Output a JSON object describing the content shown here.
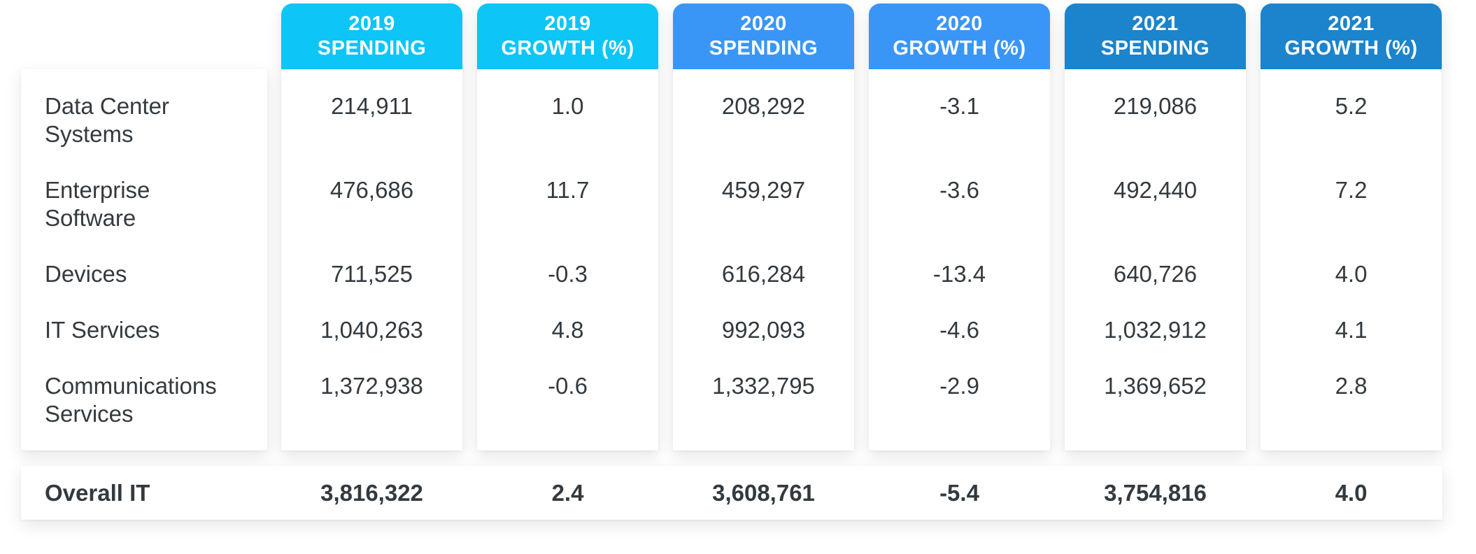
{
  "columns": [
    {
      "year": "2019",
      "label": "SPENDING"
    },
    {
      "year": "2019",
      "label": "GROWTH (%)"
    },
    {
      "year": "2020",
      "label": "SPENDING"
    },
    {
      "year": "2020",
      "label": "GROWTH (%)"
    },
    {
      "year": "2021",
      "label": "SPENDING"
    },
    {
      "year": "2021",
      "label": "GROWTH (%)"
    }
  ],
  "rows": [
    {
      "line1": "Data Center",
      "line2": "Systems",
      "values": [
        "214,911",
        "1.0",
        "208,292",
        "-3.1",
        "219,086",
        "5.2"
      ]
    },
    {
      "line1": "Enterprise",
      "line2": "Software",
      "values": [
        "476,686",
        "11.7",
        "459,297",
        "-3.6",
        "492,440",
        "7.2"
      ]
    },
    {
      "line1": "Devices",
      "line2": "",
      "values": [
        "711,525",
        "-0.3",
        "616,284",
        "-13.4",
        "640,726",
        "4.0"
      ]
    },
    {
      "line1": "IT Services",
      "line2": "",
      "values": [
        "1,040,263",
        "4.8",
        "992,093",
        "-4.6",
        "1,032,912",
        "4.1"
      ]
    },
    {
      "line1": "Communications",
      "line2": "Services",
      "values": [
        "1,372,938",
        "-0.6",
        "1,332,795",
        "-2.9",
        "1,369,652",
        "2.8"
      ]
    }
  ],
  "total": {
    "label": "Overall IT",
    "values": [
      "3,816,322",
      "2.4",
      "3,608,761",
      "-5.4",
      "3,754,816",
      "4.0"
    ]
  },
  "colors": {
    "header_2019": "#0dc5f6",
    "header_2020": "#3a96f6",
    "header_2021": "#1b84cc",
    "text": "#333a3f"
  }
}
